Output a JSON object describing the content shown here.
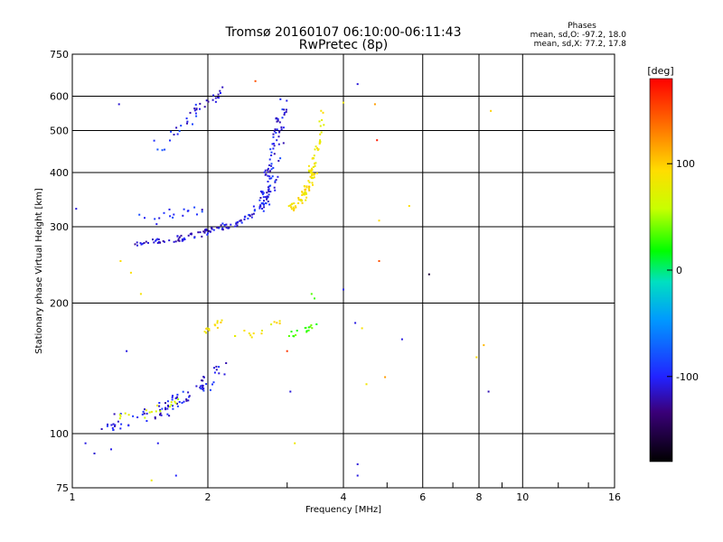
{
  "chart_data": {
    "type": "scatter",
    "title": "Tromsø 20160107 06:10:00-06:11:43",
    "subtitle": "RwPretec (8p)",
    "stats": {
      "heading": "Phases",
      "line1": "mean, sd,O: -97.2, 18.0",
      "line2": "mean, sd,X:  77.2, 17.8"
    },
    "xlabel": "Frequency [MHz]",
    "ylabel": "Stationary phase Virtual Height [km]",
    "x_scale": "log",
    "y_scale": "log",
    "xlim": [
      1,
      16
    ],
    "ylim": [
      75,
      750
    ],
    "x_ticks": [
      1,
      2,
      4,
      6,
      8,
      10,
      16
    ],
    "x_tick_labels": [
      "1",
      "2",
      "4",
      "6",
      "8",
      "10",
      "16"
    ],
    "y_ticks": [
      75,
      100,
      200,
      300,
      400,
      500,
      600,
      750
    ],
    "y_tick_labels": [
      "75",
      "100",
      "200",
      "300",
      "400",
      "500",
      "600",
      "750"
    ],
    "grid": true,
    "colorbar": {
      "label": "[deg]",
      "min": -180,
      "max": 180,
      "ticks": [
        100,
        0,
        -100
      ],
      "tick_labels": [
        "100",
        "0",
        "-100"
      ]
    },
    "traces": [
      {
        "x0": 1.38,
        "x1": 2.15,
        "h0": 275,
        "h1": 300,
        "phase": -112,
        "n": 70,
        "jitter": 0.02
      },
      {
        "x0": 2.15,
        "x1": 2.6,
        "h0": 300,
        "h1": 330,
        "phase": -108,
        "n": 30,
        "jitter": 0.025
      },
      {
        "x0": 2.6,
        "x1": 2.95,
        "h0": 330,
        "h1": 600,
        "phase": -105,
        "n": 110,
        "jitter": 0.06
      },
      {
        "x0": 3.05,
        "x1": 3.45,
        "h0": 330,
        "h1": 400,
        "phase": 88,
        "n": 60,
        "jitter": 0.03
      },
      {
        "x0": 3.35,
        "x1": 3.6,
        "h0": 400,
        "h1": 560,
        "phase": 82,
        "n": 40,
        "jitter": 0.03
      },
      {
        "x0": 1.1,
        "x1": 2.15,
        "h0": 105,
        "h1": 140,
        "phase": -108,
        "n": 90,
        "jitter": 0.06
      },
      {
        "x0": 1.18,
        "x1": 1.7,
        "h0": 108,
        "h1": 118,
        "phase": 60,
        "n": 18,
        "jitter": 0.03
      },
      {
        "x0": 1.95,
        "x1": 2.15,
        "h0": 172,
        "h1": 182,
        "phase": 92,
        "n": 14,
        "jitter": 0.02
      },
      {
        "x0": 2.3,
        "x1": 2.95,
        "h0": 168,
        "h1": 182,
        "phase": 85,
        "n": 14,
        "jitter": 0.03
      },
      {
        "x0": 3.05,
        "x1": 3.6,
        "h0": 170,
        "h1": 184,
        "phase": 18,
        "n": 16,
        "jitter": 0.02
      },
      {
        "x0": 1.85,
        "x1": 2.15,
        "h0": 560,
        "h1": 620,
        "phase": -110,
        "n": 22,
        "jitter": 0.04
      },
      {
        "x0": 1.55,
        "x1": 1.85,
        "h0": 460,
        "h1": 540,
        "phase": -102,
        "n": 16,
        "jitter": 0.05
      },
      {
        "x0": 1.4,
        "x1": 2.0,
        "h0": 310,
        "h1": 340,
        "phase": -100,
        "n": 18,
        "jitter": 0.05
      }
    ],
    "scatter": [
      {
        "x": 1.02,
        "y": 330,
        "phase": -110
      },
      {
        "x": 1.27,
        "y": 575,
        "phase": -112
      },
      {
        "x": 1.32,
        "y": 155,
        "phase": -108
      },
      {
        "x": 1.42,
        "y": 210,
        "phase": 88
      },
      {
        "x": 1.55,
        "y": 95,
        "phase": -105
      },
      {
        "x": 1.5,
        "y": 78,
        "phase": 80
      },
      {
        "x": 1.7,
        "y": 80,
        "phase": -100
      },
      {
        "x": 1.07,
        "y": 95,
        "phase": -108
      },
      {
        "x": 1.12,
        "y": 90,
        "phase": -112
      },
      {
        "x": 1.22,
        "y": 92,
        "phase": -106
      },
      {
        "x": 3.12,
        "y": 95,
        "phase": 82
      },
      {
        "x": 3.05,
        "y": 125,
        "phase": -110
      },
      {
        "x": 3.0,
        "y": 155,
        "phase": 160
      },
      {
        "x": 3.4,
        "y": 210,
        "phase": 20
      },
      {
        "x": 3.45,
        "y": 205,
        "phase": 15
      },
      {
        "x": 4.0,
        "y": 215,
        "phase": -105
      },
      {
        "x": 4.0,
        "y": 580,
        "phase": 80
      },
      {
        "x": 4.3,
        "y": 640,
        "phase": -110
      },
      {
        "x": 4.25,
        "y": 180,
        "phase": -108
      },
      {
        "x": 4.4,
        "y": 175,
        "phase": 90
      },
      {
        "x": 4.5,
        "y": 130,
        "phase": 85
      },
      {
        "x": 4.7,
        "y": 575,
        "phase": 120
      },
      {
        "x": 4.75,
        "y": 475,
        "phase": 170
      },
      {
        "x": 4.8,
        "y": 310,
        "phase": 95
      },
      {
        "x": 4.8,
        "y": 250,
        "phase": 150
      },
      {
        "x": 4.95,
        "y": 135,
        "phase": 120
      },
      {
        "x": 5.6,
        "y": 335,
        "phase": 95
      },
      {
        "x": 5.4,
        "y": 165,
        "phase": -108
      },
      {
        "x": 6.2,
        "y": 233,
        "phase": -160
      },
      {
        "x": 7.9,
        "y": 150,
        "phase": 95
      },
      {
        "x": 8.2,
        "y": 160,
        "phase": 110
      },
      {
        "x": 8.4,
        "y": 125,
        "phase": -120
      },
      {
        "x": 8.5,
        "y": 555,
        "phase": 100
      },
      {
        "x": 4.3,
        "y": 85,
        "phase": -110
      },
      {
        "x": 4.3,
        "y": 80,
        "phase": -108
      },
      {
        "x": 1.28,
        "y": 250,
        "phase": 95
      },
      {
        "x": 1.35,
        "y": 235,
        "phase": 92
      },
      {
        "x": 2.55,
        "y": 650,
        "phase": 150
      }
    ]
  }
}
